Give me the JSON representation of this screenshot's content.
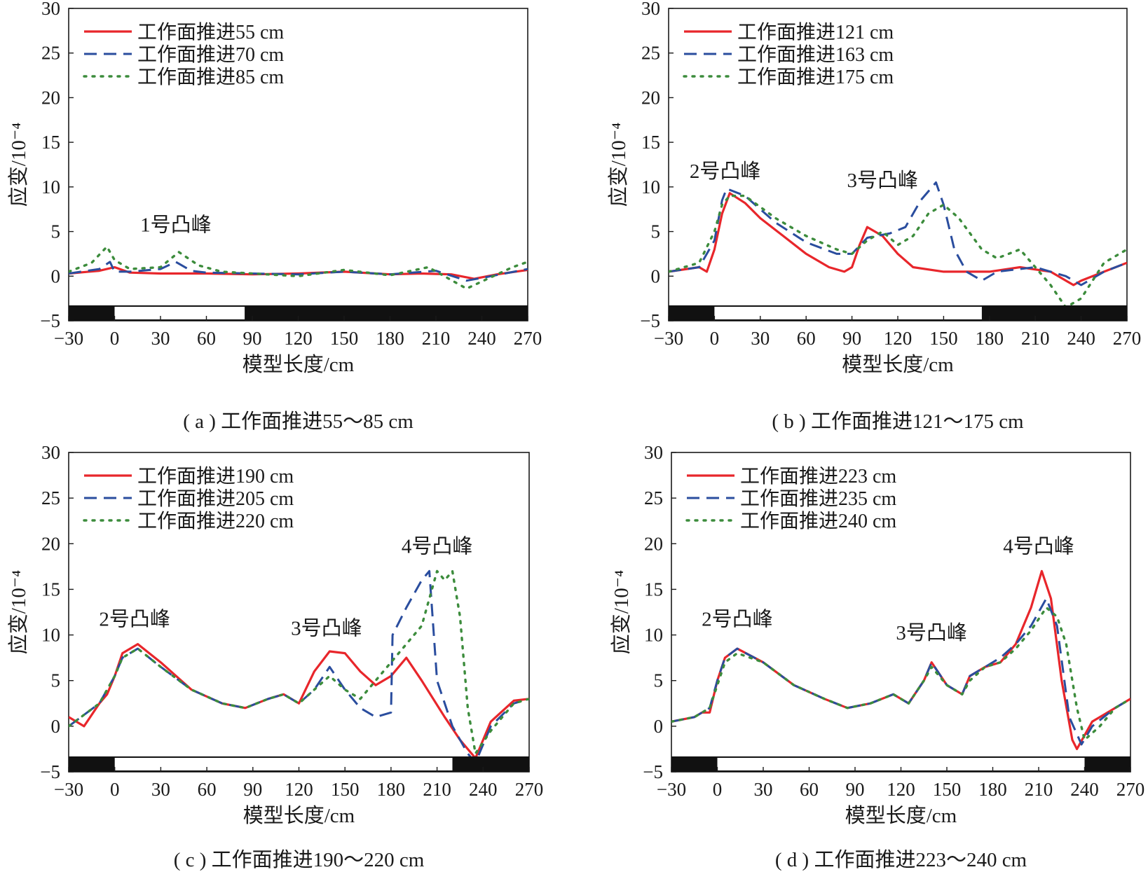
{
  "colors": {
    "red": "#e8262b",
    "blue": "#2a4d9e",
    "green": "#3c8c3c",
    "axis": "#1a1a1a"
  },
  "panels": [
    {
      "caption": "( a ) 工作面推进55～85 cm",
      "ylabel": "应变/10⁻⁴",
      "xlabel": "模型长度/cm",
      "legend": [
        "工作面推进55 cm",
        "工作面推进70 cm",
        "工作面推进85 cm"
      ],
      "annotations": [
        {
          "text": "1号凸峰",
          "x": 40,
          "y": 5
        }
      ],
      "bar_white": [
        0,
        85
      ],
      "chart_data": {
        "type": "line",
        "xlim": [
          -30,
          270
        ],
        "ylim": [
          -5,
          30
        ],
        "xticks": [
          "−30",
          "0",
          "30",
          "60",
          "90",
          "120",
          "150",
          "180",
          "210",
          "240",
          "270"
        ],
        "yticks": [
          "−5",
          "0",
          "5",
          "10",
          "15",
          "20",
          "25",
          "30"
        ],
        "series": [
          {
            "name": "工作面推进55 cm",
            "style": "solid",
            "color": "#e8262b",
            "x": [
              -30,
              -10,
              0,
              10,
              30,
              60,
              90,
              120,
              150,
              180,
              200,
              220,
              235,
              250,
              270
            ],
            "y": [
              0.3,
              0.6,
              1.0,
              0.4,
              0.3,
              0.3,
              0.2,
              0.3,
              0.5,
              0.2,
              0.3,
              0.2,
              -0.3,
              0.2,
              0.7
            ]
          },
          {
            "name": "工作面推进70 cm",
            "style": "dashed",
            "color": "#2a4d9e",
            "x": [
              -30,
              -10,
              -3,
              0,
              10,
              30,
              40,
              50,
              60,
              90,
              120,
              150,
              180,
              210,
              230,
              240,
              255,
              270
            ],
            "y": [
              0.3,
              0.8,
              1.6,
              0.5,
              0.5,
              0.8,
              1.6,
              0.6,
              0.4,
              0.3,
              0.2,
              0.5,
              0.2,
              0.6,
              -0.5,
              -0.2,
              0.3,
              0.8
            ]
          },
          {
            "name": "工作面推进85 cm",
            "style": "dotted",
            "color": "#3c8c3c",
            "x": [
              -30,
              -15,
              -5,
              0,
              10,
              30,
              42,
              55,
              70,
              90,
              120,
              150,
              180,
              205,
              230,
              240,
              260,
              270
            ],
            "y": [
              0.5,
              1.5,
              3.3,
              1.8,
              0.8,
              1.0,
              2.7,
              1.2,
              0.5,
              0.3,
              0.0,
              0.7,
              0.1,
              1.0,
              -1.4,
              -0.6,
              1.0,
              1.6
            ]
          }
        ]
      }
    },
    {
      "caption": "( b ) 工作面推进121～175 cm",
      "ylabel": "应变/10⁻⁴",
      "xlabel": "模型长度/cm",
      "legend": [
        "工作面推进121 cm",
        "工作面推进163 cm",
        "工作面推进175 cm"
      ],
      "annotations": [
        {
          "text": "2号凸峰",
          "x": 7,
          "y": 11
        },
        {
          "text": "3号凸峰",
          "x": 110,
          "y": 10
        }
      ],
      "bar_white": [
        0,
        175
      ],
      "chart_data": {
        "type": "line",
        "xlim": [
          -30,
          270
        ],
        "ylim": [
          -5,
          30
        ],
        "xticks": [
          "−30",
          "0",
          "30",
          "60",
          "90",
          "120",
          "150",
          "180",
          "210",
          "240",
          "270"
        ],
        "yticks": [
          "−5",
          "0",
          "5",
          "10",
          "15",
          "20",
          "25",
          "30"
        ],
        "series": [
          {
            "name": "工作面推进121 cm",
            "style": "solid",
            "color": "#e8262b",
            "x": [
              -30,
              -10,
              -5,
              0,
              5,
              10,
              20,
              30,
              45,
              60,
              75,
              85,
              90,
              95,
              100,
              110,
              115,
              120,
              130,
              150,
              180,
              200,
              220,
              235,
              240,
              255,
              270
            ],
            "y": [
              0.5,
              1.0,
              0.5,
              3.0,
              7.0,
              9.3,
              8.2,
              6.5,
              4.5,
              2.5,
              1.0,
              0.5,
              1.0,
              3.5,
              5.5,
              4.5,
              3.5,
              2.5,
              1.0,
              0.5,
              0.5,
              1.0,
              0.5,
              -1.0,
              -0.5,
              0.5,
              1.5
            ]
          },
          {
            "name": "工作面推进163 cm",
            "style": "dashed",
            "color": "#2a4d9e",
            "x": [
              -30,
              -10,
              0,
              5,
              8,
              20,
              40,
              60,
              80,
              90,
              100,
              115,
              125,
              135,
              145,
              150,
              157,
              165,
              175,
              185,
              210,
              230,
              240,
              255,
              270
            ],
            "y": [
              0.5,
              1.0,
              4.0,
              8.5,
              9.8,
              9.0,
              6.0,
              3.8,
              2.5,
              2.5,
              4.3,
              4.8,
              5.5,
              8.5,
              10.5,
              8.0,
              3.0,
              0.5,
              -0.5,
              0.5,
              1.0,
              0.0,
              -1.0,
              0.5,
              1.5
            ]
          },
          {
            "name": "工作面推进175 cm",
            "style": "dotted",
            "color": "#3c8c3c",
            "x": [
              -30,
              -10,
              0,
              5,
              10,
              20,
              40,
              60,
              80,
              90,
              100,
              110,
              120,
              130,
              140,
              150,
              160,
              175,
              185,
              200,
              210,
              220,
              230,
              240,
              255,
              270
            ],
            "y": [
              0.5,
              1.5,
              5.0,
              8.0,
              9.0,
              9.0,
              6.5,
              4.5,
              3.0,
              2.5,
              4.0,
              5.0,
              3.5,
              4.5,
              7.0,
              8.0,
              6.5,
              3.0,
              2.0,
              3.0,
              1.0,
              -1.0,
              -3.5,
              -2.5,
              1.5,
              3.0
            ]
          }
        ]
      }
    },
    {
      "caption": "( c ) 工作面推进190～220 cm",
      "ylabel": "应变/10⁻⁴",
      "xlabel": "模型长度/cm",
      "legend": [
        "工作面推进190 cm",
        "工作面推进205 cm",
        "工作面推进220 cm"
      ],
      "annotations": [
        {
          "text": "2号凸峰",
          "x": 13,
          "y": 11
        },
        {
          "text": "3号凸峰",
          "x": 138,
          "y": 10
        },
        {
          "text": "4号凸峰",
          "x": 210,
          "y": 19
        }
      ],
      "bar_white": [
        0,
        220
      ],
      "chart_data": {
        "type": "line",
        "xlim": [
          -30,
          270
        ],
        "ylim": [
          -5,
          30
        ],
        "xticks": [
          "−30",
          "0",
          "30",
          "60",
          "90",
          "120",
          "150",
          "180",
          "210",
          "240",
          "270"
        ],
        "yticks": [
          "−5",
          "0",
          "5",
          "10",
          "15",
          "20",
          "25",
          "30"
        ],
        "series": [
          {
            "name": "工作面推进190 cm",
            "style": "solid",
            "color": "#e8262b",
            "x": [
              -30,
              -20,
              -10,
              -5,
              0,
              5,
              15,
              30,
              50,
              70,
              85,
              100,
              110,
              120,
              130,
              140,
              150,
              160,
              170,
              180,
              190,
              200,
              215,
              225,
              235,
              245,
              260,
              270
            ],
            "y": [
              1.0,
              0.0,
              2.5,
              3.5,
              5.5,
              8.0,
              9.0,
              7.0,
              4.0,
              2.5,
              2.0,
              3.0,
              3.5,
              2.5,
              6.0,
              8.2,
              8.0,
              6.0,
              4.5,
              5.5,
              7.5,
              5.0,
              1.0,
              -1.5,
              -3.5,
              0.5,
              2.8,
              3.0
            ]
          },
          {
            "name": "工作面推进205 cm",
            "style": "dashed",
            "color": "#2a4d9e",
            "x": [
              -30,
              -10,
              0,
              5,
              15,
              30,
              50,
              70,
              85,
              100,
              110,
              120,
              130,
              140,
              150,
              160,
              170,
              180,
              181,
              190,
              200,
              205,
              210,
              220,
              230,
              235,
              245,
              260,
              270
            ],
            "y": [
              0.0,
              2.5,
              5.5,
              7.5,
              8.5,
              6.5,
              4.0,
              2.5,
              2.0,
              3.0,
              3.5,
              2.5,
              4.0,
              6.5,
              4.0,
              2.0,
              1.0,
              1.5,
              10.0,
              13.0,
              16.0,
              17.0,
              5.0,
              0.0,
              -3.0,
              -4.0,
              0.0,
              2.5,
              3.0
            ]
          },
          {
            "name": "工作面推进220 cm",
            "style": "dotted",
            "color": "#3c8c3c",
            "x": [
              -30,
              -10,
              0,
              5,
              15,
              30,
              50,
              70,
              85,
              100,
              110,
              120,
              130,
              140,
              150,
              160,
              170,
              180,
              190,
              200,
              210,
              215,
              220,
              225,
              230,
              235,
              245,
              260,
              270
            ],
            "y": [
              0.0,
              2.5,
              5.5,
              7.5,
              8.5,
              6.5,
              4.0,
              2.5,
              2.0,
              3.0,
              3.5,
              2.5,
              4.0,
              5.5,
              4.0,
              3.0,
              5.0,
              7.0,
              9.0,
              11.0,
              17.0,
              16.0,
              17.0,
              12.0,
              2.0,
              -3.0,
              -0.5,
              2.5,
              3.0
            ]
          }
        ]
      }
    },
    {
      "caption": "( d ) 工作面推进223～240 cm",
      "ylabel": "应变/10⁻⁴",
      "xlabel": "模型长度/cm",
      "legend": [
        "工作面推进223 cm",
        "工作面推进235 cm",
        "工作面推进240 cm"
      ],
      "annotations": [
        {
          "text": "2号凸峰",
          "x": 13,
          "y": 11
        },
        {
          "text": "3号凸峰",
          "x": 140,
          "y": 9.5
        },
        {
          "text": "4号凸峰",
          "x": 210,
          "y": 19
        }
      ],
      "bar_white": [
        0,
        240
      ],
      "chart_data": {
        "type": "line",
        "xlim": [
          -30,
          270
        ],
        "ylim": [
          -5,
          30
        ],
        "xticks": [
          "−30",
          "0",
          "30",
          "60",
          "90",
          "120",
          "150",
          "180",
          "210",
          "240",
          "270"
        ],
        "yticks": [
          "−5",
          "0",
          "5",
          "10",
          "15",
          "20",
          "25",
          "30"
        ],
        "series": [
          {
            "name": "工作面推进223 cm",
            "style": "solid",
            "color": "#e8262b",
            "x": [
              -30,
              -15,
              -10,
              -5,
              0,
              5,
              13,
              30,
              50,
              70,
              85,
              100,
              115,
              125,
              135,
              140,
              150,
              160,
              165,
              175,
              185,
              195,
              205,
              212,
              218,
              225,
              232,
              235,
              245,
              260,
              270
            ],
            "y": [
              0.5,
              1.0,
              1.5,
              1.5,
              5.0,
              7.5,
              8.5,
              7.0,
              4.5,
              3.0,
              2.0,
              2.5,
              3.5,
              2.5,
              5.0,
              7.0,
              4.5,
              3.5,
              5.5,
              6.5,
              7.0,
              9.0,
              13.0,
              17.0,
              14.0,
              5.0,
              -1.5,
              -2.5,
              0.5,
              2.0,
              3.0
            ]
          },
          {
            "name": "工作面推进235 cm",
            "style": "dashed",
            "color": "#2a4d9e",
            "x": [
              -30,
              -15,
              -5,
              0,
              5,
              13,
              30,
              50,
              70,
              85,
              100,
              115,
              125,
              135,
              140,
              150,
              160,
              165,
              175,
              185,
              195,
              205,
              215,
              222,
              230,
              238,
              245,
              260,
              270
            ],
            "y": [
              0.5,
              1.0,
              2.0,
              5.0,
              7.5,
              8.5,
              7.0,
              4.5,
              3.0,
              2.0,
              2.5,
              3.5,
              2.5,
              5.0,
              7.0,
              4.5,
              3.5,
              5.5,
              6.5,
              7.5,
              9.0,
              11.0,
              14.0,
              11.0,
              1.0,
              -2.0,
              0.0,
              2.0,
              3.0
            ]
          },
          {
            "name": "工作面推进240 cm",
            "style": "dotted",
            "color": "#3c8c3c",
            "x": [
              -30,
              -15,
              -5,
              0,
              5,
              13,
              30,
              50,
              70,
              85,
              100,
              115,
              125,
              135,
              140,
              150,
              160,
              165,
              175,
              185,
              195,
              205,
              215,
              222,
              228,
              235,
              240,
              250,
              260,
              270
            ],
            "y": [
              0.5,
              1.0,
              2.0,
              4.5,
              7.0,
              8.0,
              7.0,
              4.5,
              3.0,
              2.0,
              2.5,
              3.5,
              2.5,
              5.0,
              6.5,
              4.5,
              3.5,
              5.0,
              6.5,
              7.0,
              8.5,
              10.5,
              13.0,
              12.0,
              9.0,
              2.0,
              -1.5,
              0.0,
              2.0,
              3.0
            ]
          }
        ]
      }
    }
  ]
}
